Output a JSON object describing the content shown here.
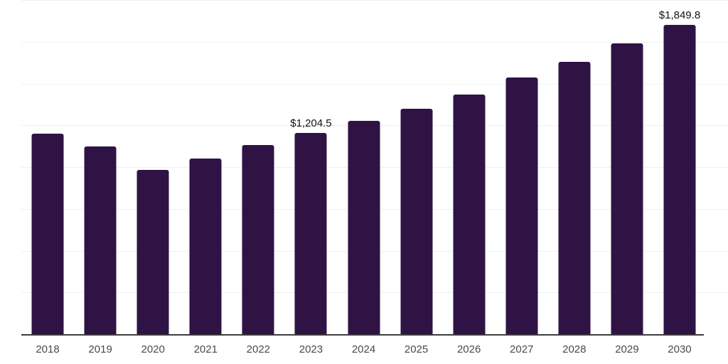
{
  "chart_data": {
    "type": "bar",
    "title": "",
    "xlabel": "",
    "ylabel": "",
    "categories": [
      "2018",
      "2019",
      "2020",
      "2021",
      "2022",
      "2023",
      "2024",
      "2025",
      "2026",
      "2027",
      "2028",
      "2029",
      "2030"
    ],
    "values": [
      1198,
      1122,
      983,
      1050,
      1130,
      1204.5,
      1277,
      1349,
      1435,
      1536,
      1631,
      1740,
      1849.8
    ],
    "point_labels": [
      "",
      "",
      "",
      "",
      "",
      "$1,204.5",
      "",
      "",
      "",
      "",
      "",
      "",
      "$1,849.8"
    ],
    "ylim": [
      0,
      2000
    ],
    "gridline_step": 250,
    "grid": true,
    "legend_position": "none",
    "colors": {
      "bar": "#2f1345",
      "gridline": "#f0f0f0",
      "axis_line": "#3d3d3d",
      "tick_label": "#4a4a4a",
      "data_label": "#111111",
      "background": "#ffffff"
    }
  }
}
